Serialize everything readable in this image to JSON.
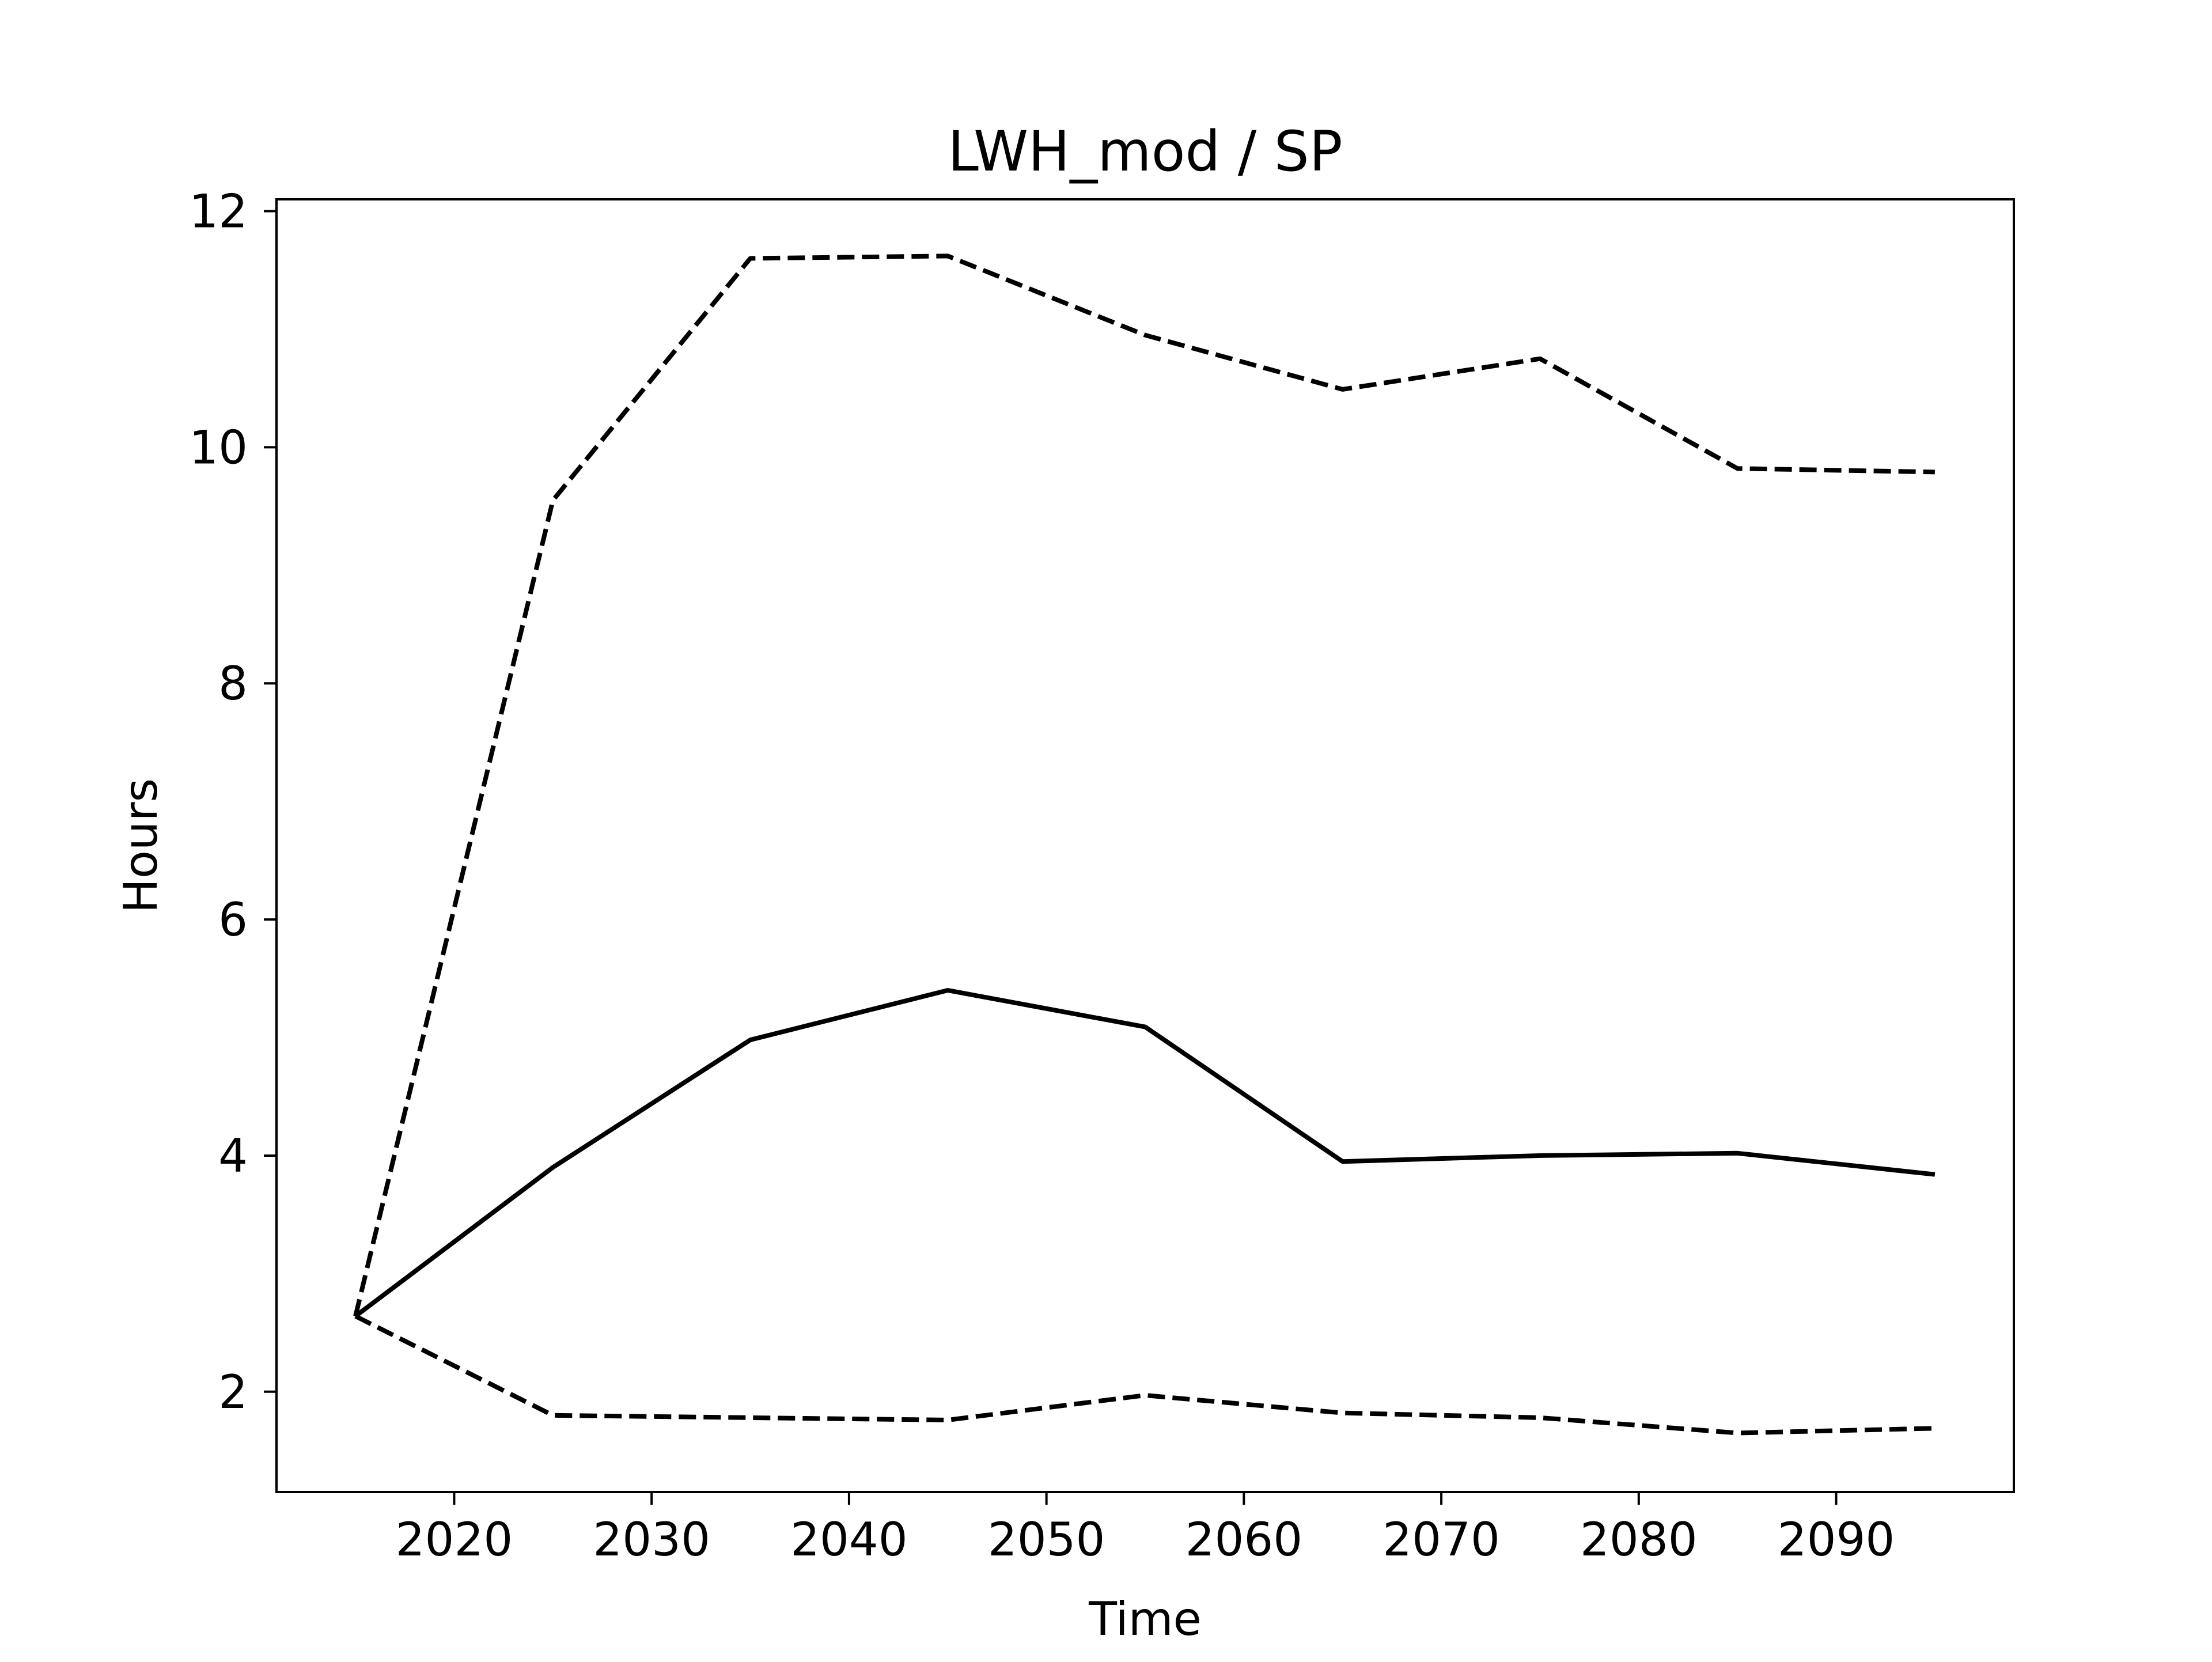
{
  "chart_data": {
    "type": "line",
    "title": "LWH_mod / SP",
    "xlabel": "Time",
    "ylabel": "Hours",
    "x": [
      2015,
      2025,
      2035,
      2045,
      2055,
      2065,
      2075,
      2085,
      2095
    ],
    "xlim": [
      2011,
      2099
    ],
    "ylim": [
      1.15,
      12.1
    ],
    "xticks": [
      2020,
      2030,
      2040,
      2050,
      2060,
      2070,
      2080,
      2090
    ],
    "yticks": [
      2,
      4,
      6,
      8,
      10,
      12
    ],
    "grid": false,
    "series": [
      {
        "style": "solid",
        "color": "#000000",
        "values": [
          2.64,
          3.9,
          4.98,
          5.4,
          5.09,
          3.95,
          4.0,
          4.02,
          3.84
        ]
      },
      {
        "style": "dashed",
        "color": "#000000",
        "values": [
          2.64,
          9.55,
          11.6,
          11.62,
          10.95,
          10.49,
          10.75,
          9.82,
          9.79
        ]
      },
      {
        "style": "dashed",
        "color": "#000000",
        "values": [
          2.64,
          1.8,
          1.78,
          1.76,
          1.97,
          1.82,
          1.78,
          1.65,
          1.69
        ]
      }
    ]
  }
}
